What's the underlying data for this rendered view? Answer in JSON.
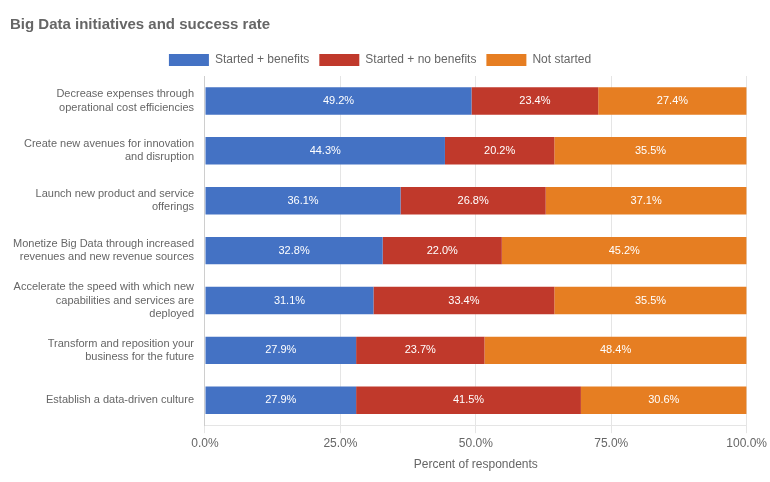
{
  "chart_data": {
    "type": "bar",
    "orientation": "horizontal",
    "stacked": true,
    "title": "Big Data initiatives and success rate",
    "xlabel": "Percent of respondents",
    "categories": [
      "Decrease expenses through\noperational cost efficiencies",
      "Create new avenues for innovation\nand disruption",
      "Launch new product and service\nofferings",
      "Monetize Big Data through increased\nrevenues and new revenue sources",
      "Accelerate the speed with which new\ncapabilities and services are\ndeployed",
      "Transform and reposition your\nbusiness for the future",
      "Establish a data-driven culture"
    ],
    "series": [
      {
        "name": "Started + benefits",
        "color": "#4472c4",
        "values": [
          49.2,
          44.3,
          36.1,
          32.8,
          31.1,
          27.9,
          27.9
        ],
        "value_labels": [
          "49.2%",
          "44.3%",
          "36.1%",
          "32.8%",
          "31.1%",
          "27.9%",
          "27.9%"
        ]
      },
      {
        "name": "Started + no benefits",
        "color": "#c0392b",
        "values": [
          23.4,
          20.2,
          26.8,
          22.0,
          33.4,
          23.7,
          41.5
        ],
        "value_labels": [
          "23.4%",
          "20.2%",
          "26.8%",
          "22.0%",
          "33.4%",
          "23.7%",
          "41.5%"
        ]
      },
      {
        "name": "Not started",
        "color": "#e67e22",
        "values": [
          27.4,
          35.5,
          37.1,
          45.2,
          35.5,
          48.4,
          30.6
        ],
        "value_labels": [
          "27.4%",
          "35.5%",
          "37.1%",
          "45.2%",
          "35.5%",
          "48.4%",
          "30.6%"
        ]
      }
    ],
    "xlim": [
      0,
      100
    ],
    "xticks": [
      {
        "value": 0,
        "label": "0.0%"
      },
      {
        "value": 25,
        "label": "25.0%"
      },
      {
        "value": 50,
        "label": "50.0%"
      },
      {
        "value": 75,
        "label": "75.0%"
      },
      {
        "value": 100,
        "label": "100.0%"
      }
    ],
    "grid": true,
    "legend": "top",
    "data_labels": true
  }
}
